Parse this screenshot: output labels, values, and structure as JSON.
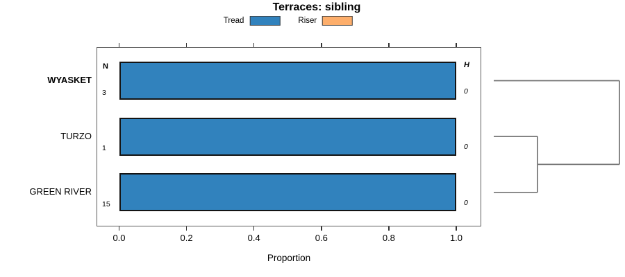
{
  "title": "Terraces: sibling",
  "legend": {
    "items": [
      {
        "label": "Tread",
        "color": "#3182bd"
      },
      {
        "label": "Riser",
        "color": "#fdae6b"
      }
    ]
  },
  "axis": {
    "xlabel": "Proportion",
    "tick_labels": [
      "0.0",
      "0.2",
      "0.4",
      "0.6",
      "0.8",
      "1.0"
    ]
  },
  "chart_data": {
    "type": "bar",
    "orientation": "horizontal",
    "title": "Terraces: sibling",
    "xlabel": "Proportion",
    "xlim": [
      0,
      1
    ],
    "grid": false,
    "legend_position": "top-center",
    "categories": [
      "WYASKET",
      "TURZO",
      "GREEN RIVER"
    ],
    "emphasized_category": "WYASKET",
    "series": [
      {
        "name": "Tread",
        "color": "#3182bd",
        "values": [
          1.0,
          1.0,
          1.0
        ]
      },
      {
        "name": "Riser",
        "color": "#fdae6b",
        "values": [
          0.0,
          0.0,
          0.0
        ]
      }
    ],
    "n_column": {
      "header": "N",
      "values": [
        3,
        1,
        15
      ]
    },
    "h_column": {
      "header": "H",
      "values": [
        0,
        0,
        0
      ]
    },
    "dendrogram": {
      "present": true,
      "merges": [
        {
          "members": [
            "TURZO",
            "GREEN RIVER"
          ],
          "height": 0
        },
        {
          "members": [
            "WYASKET",
            "TURZO+GREEN RIVER"
          ],
          "height": 0
        }
      ]
    }
  }
}
